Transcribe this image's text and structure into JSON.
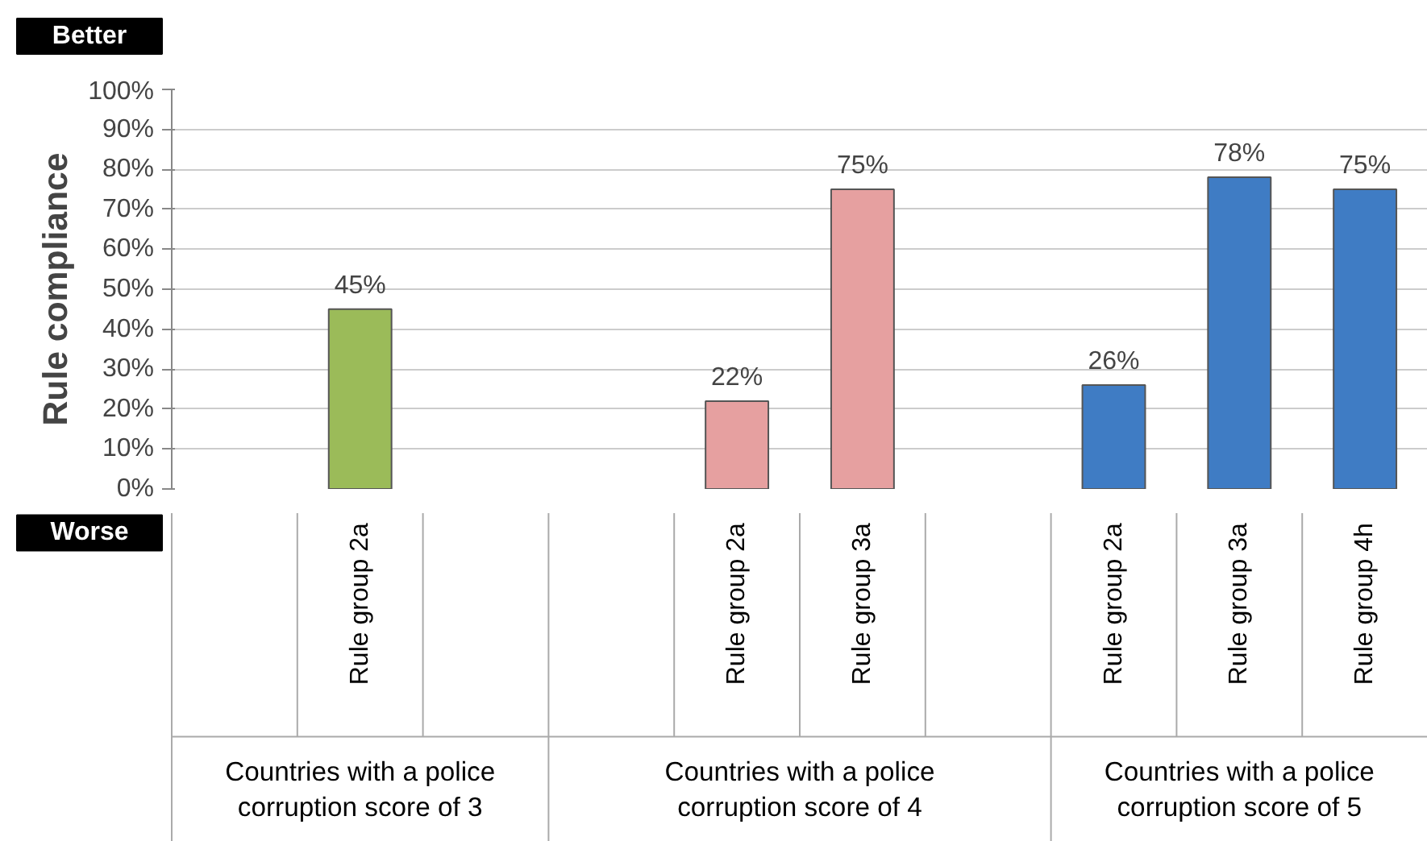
{
  "chart_data": {
    "type": "bar",
    "ylabel": "Rule compliance",
    "categories": [
      null,
      "Rule group 2a",
      null,
      null,
      "Rule group 2a",
      "Rule group 3a",
      null,
      "Rule group 2a",
      "Rule group 3a",
      "Rule group 4h"
    ],
    "values": [
      null,
      45,
      null,
      null,
      22,
      75,
      null,
      26,
      78,
      75
    ],
    "colors": [
      null,
      "#9bbb59",
      null,
      null,
      "#e6a0a0",
      "#e6a0a0",
      null,
      "#3f7cc4",
      "#3f7cc4",
      "#3f7cc4"
    ],
    "value_labels": [
      null,
      "45%",
      null,
      null,
      "22%",
      "75%",
      null,
      "26%",
      "78%",
      "75%"
    ],
    "ylim": [
      0,
      100
    ],
    "yticks": [
      {
        "value": 0,
        "label": "0%"
      },
      {
        "value": 10,
        "label": "10%"
      },
      {
        "value": 20,
        "label": "20%"
      },
      {
        "value": 30,
        "label": "30%"
      },
      {
        "value": 40,
        "label": "40%"
      },
      {
        "value": 50,
        "label": "50%"
      },
      {
        "value": 60,
        "label": "60%"
      },
      {
        "value": 70,
        "label": "70%"
      },
      {
        "value": 80,
        "label": "80%"
      },
      {
        "value": 90,
        "label": "90%"
      },
      {
        "value": 100,
        "label": "100%"
      }
    ],
    "grid": "y",
    "annotations": [
      "Better",
      "Worse",
      "Countries with a police\ncorruption score of 3",
      "Countries with a police\ncorruption score of 4",
      "Countries with a police\ncorruption score of 5"
    ]
  }
}
